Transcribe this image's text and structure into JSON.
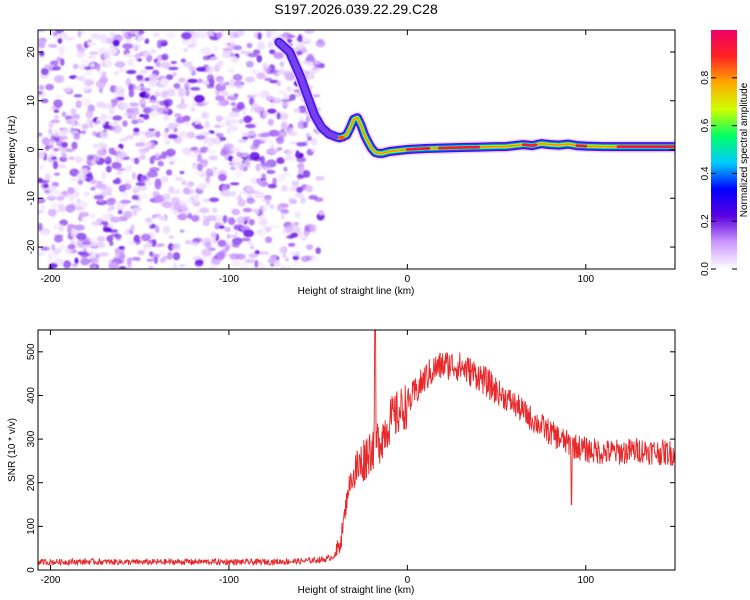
{
  "title": "S197.2026.039.22.29.C28",
  "colors": {
    "snr_line": "#e8282a",
    "frame": "#000000",
    "background": "#ffffff"
  },
  "chart_data": [
    {
      "type": "heatmap",
      "name": "spectrogram",
      "xlabel": "Height of straight line (km)",
      "ylabel": "Frequency (Hz)",
      "xlim": [
        -207,
        150
      ],
      "ylim": [
        -24.5,
        24.5
      ],
      "xticks": [
        -200,
        -100,
        0,
        100
      ],
      "yticks": [
        -20,
        -10,
        0,
        10,
        20
      ],
      "x_tick_labels": [
        "-200",
        "-100",
        "0",
        "100"
      ],
      "y_tick_labels": [
        "-20",
        "-10",
        "0",
        "10",
        "20"
      ],
      "noise_region_x": [
        -207,
        -48
      ],
      "ridge": {
        "x": [
          -72,
          -66,
          -60,
          -56,
          -52,
          -48,
          -44,
          -40,
          -38,
          -36,
          -34,
          -32,
          -30,
          -28,
          -26,
          -24,
          -22,
          -20,
          -18,
          -16,
          -14,
          -12,
          -10,
          -5,
          0,
          10,
          20,
          30,
          40,
          50,
          55,
          60,
          65,
          70,
          75,
          80,
          85,
          90,
          95,
          100,
          110,
          120,
          130,
          140,
          150
        ],
        "y": [
          22,
          20,
          15,
          11,
          7,
          4.5,
          3.2,
          2.6,
          2.4,
          2.6,
          3.0,
          4.5,
          6.2,
          6.5,
          5.0,
          3.0,
          1.5,
          0.2,
          -0.6,
          -0.8,
          -0.8,
          -0.6,
          -0.4,
          -0.2,
          0.0,
          0.2,
          0.3,
          0.4,
          0.5,
          0.6,
          0.6,
          0.8,
          1.0,
          0.8,
          1.2,
          1.0,
          0.9,
          1.1,
          0.8,
          0.7,
          0.6,
          0.6,
          0.6,
          0.6,
          0.6
        ]
      },
      "colorbar": {
        "label": "Normalized spectral amplitude",
        "range": [
          0,
          1
        ],
        "ticks": [
          "0.0",
          "0.2",
          "0.4",
          "0.6",
          "0.8"
        ],
        "stops": [
          "#ffffff",
          "#cc99ff",
          "#5a00e0",
          "#0000ff",
          "#00ccff",
          "#00ff66",
          "#ccff00",
          "#ffaa00",
          "#ff2222",
          "#ee0066"
        ]
      }
    },
    {
      "type": "line",
      "name": "snr",
      "xlabel": "Height of straight line (km)",
      "ylabel": "SNR (10 * v/v)",
      "xlim": [
        -207,
        150
      ],
      "ylim": [
        0,
        550
      ],
      "xticks": [
        -200,
        -100,
        0,
        100
      ],
      "yticks": [
        0,
        100,
        200,
        300,
        400,
        500
      ],
      "x_tick_labels": [
        "-200",
        "-100",
        "0",
        "100"
      ],
      "y_tick_labels": [
        "0",
        "100",
        "200",
        "300",
        "400",
        "500"
      ],
      "series": [
        {
          "name": "SNR",
          "x": [
            -207,
            -180,
            -150,
            -120,
            -90,
            -60,
            -45,
            -40,
            -37,
            -35,
            -33,
            -30,
            -25,
            -22,
            -20,
            -15,
            -10,
            -5,
            0,
            5,
            10,
            15,
            20,
            25,
            30,
            35,
            40,
            50,
            60,
            70,
            80,
            90,
            100,
            110,
            120,
            130,
            140,
            150
          ],
          "values": [
            18,
            19,
            18,
            19,
            18,
            20,
            25,
            35,
            75,
            130,
            190,
            220,
            250,
            270,
            280,
            300,
            340,
            360,
            380,
            410,
            440,
            460,
            470,
            470,
            465,
            455,
            445,
            410,
            380,
            345,
            315,
            290,
            275,
            270,
            270,
            275,
            270,
            268
          ]
        }
      ],
      "annotations": [
        {
          "x": -18,
          "value": 548,
          "label": "spike"
        },
        {
          "x": 92,
          "value": 150,
          "label": "dip"
        }
      ]
    }
  ]
}
